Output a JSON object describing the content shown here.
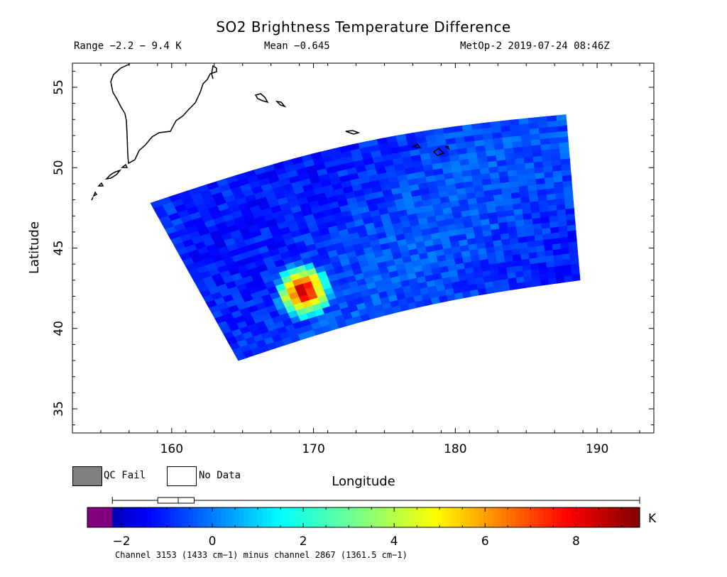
{
  "header": {
    "title": "SO2 Brightness Temperature Difference",
    "range_label": "Range −2.2 − 9.4 K",
    "mean_label": "Mean −0.645",
    "satellite_time": "MetOp-2 2019-07-24 08:46Z"
  },
  "legend": {
    "qc_fail": "QC Fail",
    "no_data": "No Data",
    "qc_fail_color": "#808080",
    "no_data_color": "#ffffff"
  },
  "colorbar": {
    "unit": "K",
    "min": -2.75,
    "max": 9.4,
    "ticks": [
      -2,
      0,
      2,
      4,
      6,
      8
    ],
    "tick_labels": [
      "−2",
      "0",
      "2",
      "4",
      "6",
      "8"
    ],
    "underflow_color": "#800080",
    "overflow_color": "#ff00ff",
    "caption": "Channel 3153 (1433 cm−1) minus channel 2867 (1361.5 cm−1)",
    "whisker_min": -2.2,
    "whisker_max": 9.4,
    "box_q1": -1.2,
    "box_median": -0.75,
    "box_q3": -0.4
  },
  "chart_data": {
    "type": "heatmap",
    "title": "SO2 Brightness Temperature Difference",
    "xlabel": "Longitude",
    "ylabel": "Latitude",
    "xlim": [
      153,
      194
    ],
    "ylim": [
      33.5,
      56.5
    ],
    "x_ticks": [
      160,
      170,
      180,
      190
    ],
    "y_ticks": [
      35,
      40,
      45,
      50,
      55
    ],
    "grid": false,
    "swath_corners_lonlat": [
      [
        158.5,
        47.8
      ],
      [
        187.8,
        53.3
      ],
      [
        188.8,
        43.0
      ],
      [
        164.7,
        38.0
      ]
    ],
    "background_value": -0.8,
    "hotspot": {
      "lon": 169.3,
      "lat": 42.3,
      "peak": 9.4,
      "radius_deg": 1.6
    },
    "range": [
      -2.2,
      9.4
    ],
    "mean": -0.645
  }
}
